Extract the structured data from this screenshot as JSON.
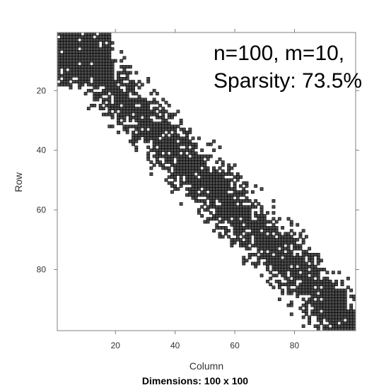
{
  "chart_data": {
    "type": "heatmap",
    "subtype": "sparse-matrix-image",
    "title": "",
    "xlabel": "Column",
    "ylabel": "Row",
    "sub": "Dimensions: 100 x 100",
    "dimensions": {
      "rows": 100,
      "cols": 100
    },
    "xlim": [
      1,
      100
    ],
    "ylim": [
      100,
      1
    ],
    "x_ticks": [
      20,
      40,
      60,
      80
    ],
    "y_ticks": [
      20,
      40,
      60,
      80
    ],
    "annotation_lines": [
      "n=100, m=10,",
      "Sparsity: 73.5%"
    ],
    "parameters": {
      "n": 100,
      "m": 10,
      "sparsity_percent": 73.5
    },
    "nonzero_pattern": "banded, |row - column| roughly <= 15, dense near the diagonal and in the top-left block, thinning away from the diagonal",
    "colors": {
      "nonzero_fill": "#4d4d4d",
      "cell_border": "#000000",
      "frame": "#808080",
      "background": "#ffffff"
    },
    "grid": false,
    "legend": "none"
  }
}
